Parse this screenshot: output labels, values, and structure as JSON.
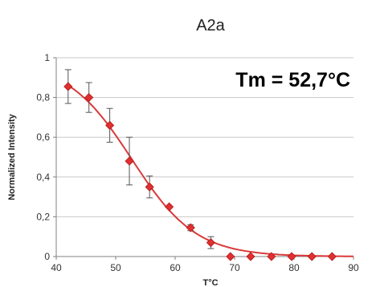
{
  "chart_data": {
    "type": "scatter",
    "title": "A2a",
    "xlabel": "T°C",
    "ylabel": "Normalized Intensity",
    "annotation": "Tm = 52,7°C",
    "xlim": [
      40,
      90
    ],
    "ylim": [
      0,
      1
    ],
    "x_ticks": [
      "40",
      "50",
      "60",
      "70",
      "80",
      "90"
    ],
    "y_ticks": [
      "0",
      "0,2",
      "0,4",
      "0,6",
      "0,8",
      "1"
    ],
    "grid": true,
    "marker_color": "#e03030",
    "fit_color": "#d93a3a",
    "series": [
      {
        "x": [
          42,
          45.5,
          49,
          52.3,
          55.7,
          59,
          62.6,
          66,
          69.3,
          72.7,
          76.2,
          79.6,
          83,
          86.4
        ],
        "y": [
          0.855,
          0.8,
          0.66,
          0.48,
          0.35,
          0.25,
          0.145,
          0.07,
          0,
          0,
          0,
          0,
          0,
          0
        ],
        "error": [
          0.085,
          0.075,
          0.085,
          0.12,
          0.055,
          0,
          0.015,
          0.03,
          0,
          0,
          0,
          0,
          0,
          0
        ]
      }
    ],
    "fit": {
      "type": "sigmoid",
      "tm": 52.7
    }
  }
}
